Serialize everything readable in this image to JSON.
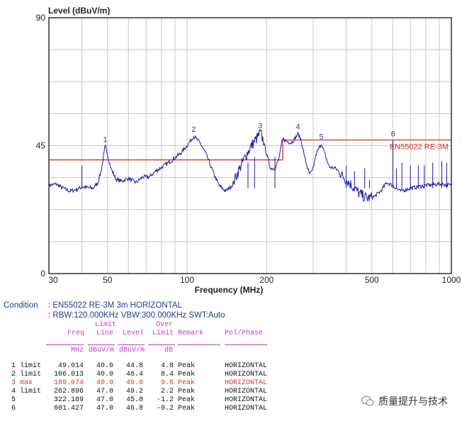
{
  "chart_data": {
    "type": "line",
    "ylabel": "Level (dBuV/m)",
    "xlabel": "Frequency (MHz)",
    "xscale": "log",
    "xlim": [
      30,
      1000
    ],
    "ylim": [
      0,
      90
    ],
    "ytick_labels": [
      "90",
      "45",
      "0"
    ],
    "yticks": [
      90,
      45,
      0
    ],
    "xtick_labels": [
      "30",
      "50",
      "100",
      "200",
      "500",
      "1000"
    ],
    "xticks": [
      30,
      50,
      100,
      200,
      500,
      1000
    ],
    "grid": true,
    "limit_line": {
      "name": "EN55022 RE-3M",
      "color": "#d03030",
      "segments": [
        [
          30,
          230,
          40
        ],
        [
          230,
          1000,
          47
        ]
      ]
    },
    "trace_color": "#1a1aa8",
    "trace": [
      [
        30,
        31
      ],
      [
        32,
        31.5
      ],
      [
        34,
        30
      ],
      [
        36,
        29
      ],
      [
        38,
        29.5
      ],
      [
        40,
        30.5
      ],
      [
        44,
        30
      ],
      [
        46,
        32
      ],
      [
        47.5,
        37
      ],
      [
        49,
        44.8
      ],
      [
        50,
        42
      ],
      [
        51.5,
        37
      ],
      [
        54,
        33
      ],
      [
        57,
        32.5
      ],
      [
        60,
        33.5
      ],
      [
        64,
        32
      ],
      [
        68,
        34
      ],
      [
        72,
        34
      ],
      [
        76,
        36
      ],
      [
        82,
        38
      ],
      [
        88,
        40
      ],
      [
        95,
        42.5
      ],
      [
        100,
        45
      ],
      [
        106,
        48.4
      ],
      [
        112,
        46
      ],
      [
        118,
        42
      ],
      [
        125,
        36
      ],
      [
        132,
        31
      ],
      [
        140,
        29
      ],
      [
        148,
        31
      ],
      [
        158,
        37
      ],
      [
        168,
        42
      ],
      [
        178,
        46
      ],
      [
        185,
        48
      ],
      [
        189,
        49.6
      ],
      [
        194,
        47
      ],
      [
        200,
        42
      ],
      [
        207,
        37
      ],
      [
        215,
        37
      ],
      [
        222,
        40
      ],
      [
        230,
        47.5
      ],
      [
        238,
        46.5
      ],
      [
        248,
        46
      ],
      [
        256,
        47.5
      ],
      [
        263,
        49.2
      ],
      [
        270,
        47
      ],
      [
        280,
        40
      ],
      [
        290,
        35
      ],
      [
        298,
        36
      ],
      [
        308,
        42
      ],
      [
        322,
        45.8
      ],
      [
        332,
        42
      ],
      [
        345,
        37.5
      ],
      [
        365,
        37
      ],
      [
        390,
        34
      ],
      [
        420,
        31
      ],
      [
        450,
        28
      ],
      [
        480,
        26.5
      ],
      [
        510,
        27
      ],
      [
        540,
        29
      ],
      [
        570,
        32
      ],
      [
        600,
        31
      ],
      [
        640,
        29
      ],
      [
        700,
        30
      ],
      [
        800,
        31
      ],
      [
        900,
        31.5
      ],
      [
        1000,
        31
      ]
    ],
    "spikes": [
      [
        40,
        38
      ],
      [
        170,
        39
      ],
      [
        180,
        41
      ],
      [
        215,
        41
      ],
      [
        400,
        38
      ],
      [
        430,
        36
      ],
      [
        470,
        37
      ],
      [
        490,
        33
      ],
      [
        601,
        46.8
      ],
      [
        620,
        37
      ],
      [
        650,
        39
      ],
      [
        700,
        38
      ],
      [
        750,
        38
      ],
      [
        790,
        38
      ],
      [
        850,
        39
      ],
      [
        920,
        39.5
      ],
      [
        960,
        39
      ]
    ],
    "markers": [
      {
        "label": "1",
        "freq": 49.014,
        "level": 44.8
      },
      {
        "label": "2",
        "freq": 106.013,
        "level": 48.4
      },
      {
        "label": "3",
        "freq": 189.074,
        "level": 49.6
      },
      {
        "label": "4",
        "freq": 262.896,
        "level": 49.2
      },
      {
        "label": "5",
        "freq": 322.189,
        "level": 45.8
      },
      {
        "label": "6",
        "freq": 601.427,
        "level": 46.8
      }
    ]
  },
  "condition": {
    "label": "Condition",
    "line1": ": EN55022 RE-3M 3m HORIZONTAL",
    "line2": ": RBW:120.000KHz VBW:300.000KHz SWT:Auto"
  },
  "table": {
    "headers": {
      "freq": "Freq",
      "limit_top": "Limit",
      "limit": "Line",
      "level": "Level",
      "over_top": "Over",
      "over": "Limit",
      "remark": "Remark",
      "pol": "Pol/Phase"
    },
    "units": {
      "freq": "MHz",
      "limit": "dBuV/m",
      "level": "dBuV/m",
      "over": "dB"
    },
    "rows": [
      {
        "id": "1 limit",
        "freq": "49.014",
        "limit": "40.0",
        "level": "44.8",
        "over": "4.8",
        "remark": "Peak",
        "pol": "HORIZONTAL"
      },
      {
        "id": "2 limit",
        "freq": "106.013",
        "limit": "40.0",
        "level": "48.4",
        "over": "8.4",
        "remark": "Peak",
        "pol": "HORIZONTAL"
      },
      {
        "id": "3 max",
        "freq": "189.074",
        "limit": "40.0",
        "level": "49.6",
        "over": "9.6",
        "remark": "Peak",
        "pol": "HORIZONTAL"
      },
      {
        "id": "4 limit",
        "freq": "262.896",
        "limit": "47.0",
        "level": "49.2",
        "over": "2.2",
        "remark": "Peak",
        "pol": "HORIZONTAL"
      },
      {
        "id": "5",
        "freq": "322.189",
        "limit": "47.0",
        "level": "45.8",
        "over": "-1.2",
        "remark": "Peak",
        "pol": "HORIZONTAL"
      },
      {
        "id": "6",
        "freq": "601.427",
        "limit": "47.0",
        "level": "46.8",
        "over": "-0.2",
        "remark": "Peak",
        "pol": "HORIZONTAL"
      }
    ]
  },
  "watermark": {
    "text": "质量提升与技术"
  }
}
